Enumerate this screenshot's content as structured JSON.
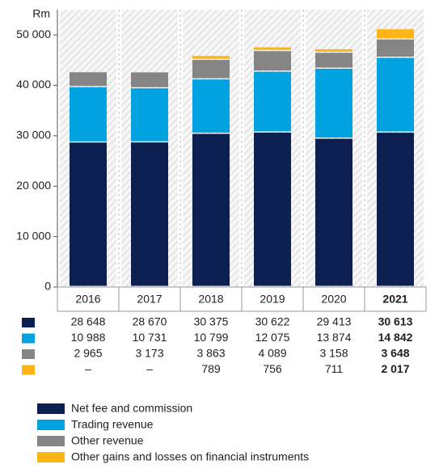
{
  "chart_data": {
    "type": "stacked_bar",
    "y_label": "Rm",
    "categories": [
      "2016",
      "2017",
      "2018",
      "2019",
      "2020",
      "2021"
    ],
    "series": [
      {
        "name": "Net fee and commission",
        "color": "#0b1f51",
        "values": [
          28648,
          28670,
          30375,
          30622,
          29413,
          30613
        ],
        "value_labels": [
          "28 648",
          "28 670",
          "30 375",
          "30 622",
          "29 413",
          "30 613"
        ]
      },
      {
        "name": "Trading revenue",
        "color": "#00a3e0",
        "values": [
          10988,
          10731,
          10799,
          12075,
          13874,
          14842
        ],
        "value_labels": [
          "10 988",
          "10 731",
          "10 799",
          "12 075",
          "13 874",
          "14 842"
        ]
      },
      {
        "name": "Other revenue",
        "color": "#858585",
        "values": [
          2965,
          3173,
          3863,
          4089,
          3158,
          3648
        ],
        "value_labels": [
          "2 965",
          "3 173",
          "3 863",
          "4 089",
          "3 158",
          "3 648"
        ]
      },
      {
        "name": "Other gains and losses on financial instruments",
        "color": "#fdb515",
        "values": [
          null,
          null,
          789,
          756,
          711,
          2017
        ],
        "value_labels": [
          "–",
          "–",
          "789",
          "756",
          "711",
          "2 017"
        ]
      }
    ],
    "ylim": [
      0,
      55000
    ],
    "yticks": [
      0,
      {
        "value": 10000,
        "label": "10 000"
      },
      {
        "value": 20000,
        "label": "20 000"
      },
      {
        "value": 30000,
        "label": "30 000"
      },
      {
        "value": 40000,
        "label": "40 000"
      },
      {
        "value": 50000,
        "label": "50 000"
      }
    ]
  }
}
